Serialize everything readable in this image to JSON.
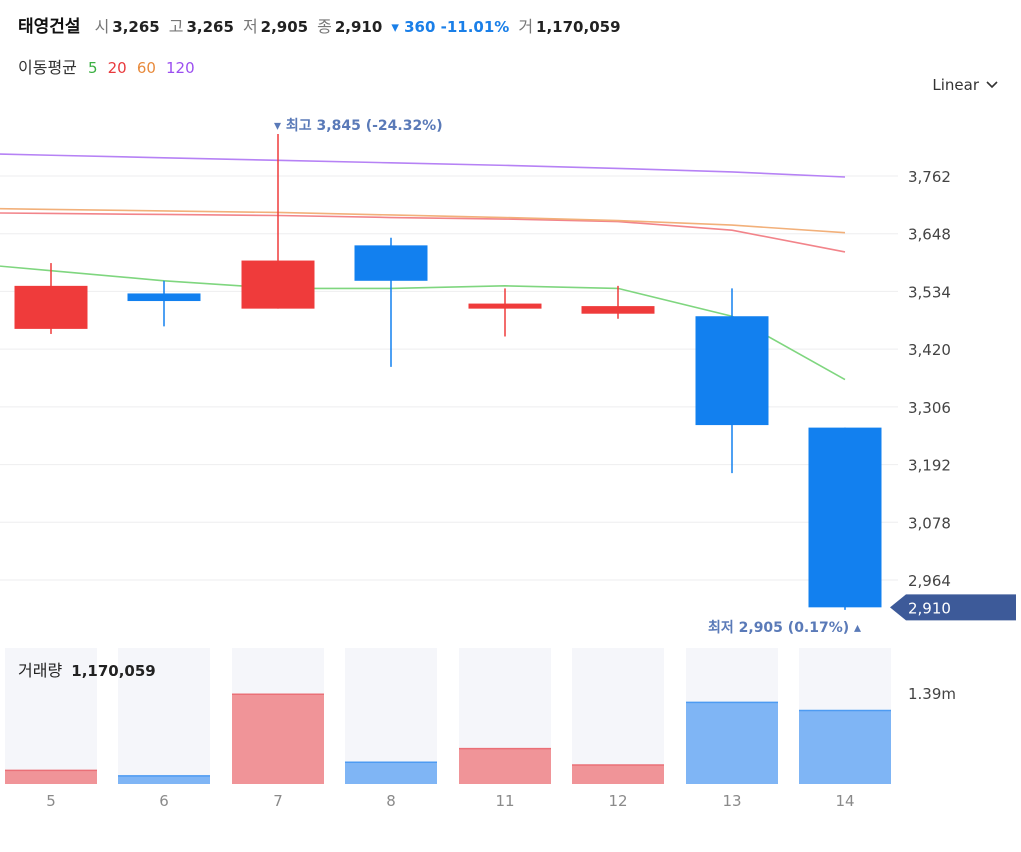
{
  "header": {
    "stock_name": "태영건설",
    "open_label": "시",
    "open_value": "3,265",
    "high_label": "고",
    "high_value": "3,265",
    "low_label": "저",
    "low_value": "2,905",
    "close_label": "종",
    "close_value": "2,910",
    "change_text": "▾ 360 -11.01%",
    "volume_label": "거",
    "volume_value": "1,170,059"
  },
  "moving_average": {
    "title": "이동평균",
    "periods": [
      {
        "label": "5",
        "color": "#3cb043"
      },
      {
        "label": "20",
        "color": "#e8393d"
      },
      {
        "label": "60",
        "color": "#e88a3c"
      },
      {
        "label": "120",
        "color": "#9b4ff0"
      }
    ]
  },
  "scale_selector": {
    "label": "Linear",
    "icon": "chevron-down-icon"
  },
  "annotations": {
    "max_text": "▾ 최고 3,845 (-24.32%)",
    "min_text": "최저 2,905 (0.17%) ▴",
    "current_price": "2,910"
  },
  "volume_panel": {
    "title": "거래량",
    "value": "1,170,059",
    "axis_label": "1.39m"
  },
  "colors": {
    "up": "#ef3b3b",
    "down": "#1280ef",
    "up_vol": "#f09498",
    "down_vol": "#7fb5f5",
    "price_tag": "#3d5a99"
  },
  "chart_data": {
    "type": "candlestick",
    "categories": [
      "5",
      "6",
      "7",
      "8",
      "11",
      "12",
      "13",
      "14"
    ],
    "ohlc": [
      {
        "open": 3460,
        "high": 3590,
        "low": 3450,
        "close": 3545
      },
      {
        "open": 3530,
        "high": 3555,
        "low": 3465,
        "close": 3515
      },
      {
        "open": 3500,
        "high": 3845,
        "low": 3500,
        "close": 3595
      },
      {
        "open": 3625,
        "high": 3640,
        "low": 3385,
        "close": 3555
      },
      {
        "open": 3500,
        "high": 3540,
        "low": 3445,
        "close": 3510
      },
      {
        "open": 3490,
        "high": 3545,
        "low": 3480,
        "close": 3505
      },
      {
        "open": 3485,
        "high": 3540,
        "low": 3175,
        "close": 3270
      },
      {
        "open": 3265,
        "high": 3265,
        "low": 2905,
        "close": 2910
      }
    ],
    "moving_averages": [
      {
        "period": "5",
        "values": [
          3575,
          3555,
          3540,
          3540,
          3545,
          3540,
          3485,
          3360
        ]
      },
      {
        "period": "20",
        "values": [
          3688,
          3686,
          3684,
          3680,
          3677,
          3672,
          3655,
          3612
        ]
      },
      {
        "period": "60",
        "values": [
          3696,
          3693,
          3690,
          3685,
          3680,
          3674,
          3665,
          3650
        ]
      },
      {
        "period": "120",
        "values": [
          3803,
          3798,
          3793,
          3788,
          3783,
          3777,
          3770,
          3760
        ]
      }
    ],
    "yticks": [
      "3,762",
      "3,648",
      "3,534",
      "3,420",
      "3,306",
      "3,192",
      "3,078",
      "2,964"
    ],
    "ylim": [
      2900,
      3880
    ],
    "volume": [
      0.1,
      0.06,
      0.66,
      0.16,
      0.26,
      0.14,
      0.6,
      0.54
    ]
  }
}
